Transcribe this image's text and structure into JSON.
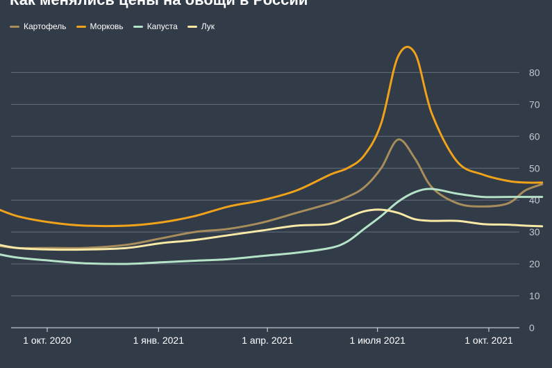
{
  "chart_data": {
    "type": "line",
    "title": "Как менялись цены на овощи в России",
    "xlabel": "",
    "ylabel": "",
    "ylim": [
      0,
      90
    ],
    "y_ticks": [
      0,
      10,
      20,
      30,
      40,
      50,
      60,
      70,
      80
    ],
    "x_tick_labels": [
      "1 окт. 2020",
      "1 янв. 2021",
      "1 апр. 2021",
      "1 июля 2021",
      "1 окт. 2021"
    ],
    "x_ticks": [
      "2020-10-01",
      "2021-01-01",
      "2021-04-01",
      "2021-07-01",
      "2021-10-01"
    ],
    "grid": true,
    "legend_position": "top-left",
    "x": [
      "2020-08-16",
      "2020-09-06",
      "2020-10-04",
      "2020-11-01",
      "2020-12-06",
      "2021-01-03",
      "2021-01-31",
      "2021-02-28",
      "2021-03-28",
      "2021-04-25",
      "2021-05-23",
      "2021-06-06",
      "2021-06-20",
      "2021-07-04",
      "2021-07-18",
      "2021-08-01",
      "2021-08-15",
      "2021-09-05",
      "2021-09-26",
      "2021-10-17",
      "2021-10-31",
      "2021-11-14"
    ],
    "series": [
      {
        "name": "Картофель",
        "color": "#a88d5c",
        "values": [
          26,
          25,
          25,
          25,
          26,
          28,
          30,
          31,
          33,
          36,
          39,
          41,
          44,
          50,
          59,
          53,
          44,
          39,
          38,
          39,
          43,
          45
        ]
      },
      {
        "name": "Морковь",
        "color": "#f0a21b",
        "values": [
          38,
          35,
          33,
          32,
          32,
          33,
          35,
          38,
          40,
          43,
          48,
          50,
          54,
          64,
          85,
          86,
          67,
          52,
          48,
          46,
          45.5,
          45.5
        ]
      },
      {
        "name": "Капуста",
        "color": "#b4e3c7",
        "values": [
          23.5,
          22,
          21,
          20.2,
          20,
          20.5,
          21,
          21.5,
          22.5,
          23.5,
          25,
          27,
          31,
          35,
          39.5,
          42.5,
          43.5,
          42,
          41,
          41,
          41,
          41
        ]
      },
      {
        "name": "Лук",
        "color": "#f8eaa6",
        "values": [
          26.5,
          25,
          24.5,
          24.5,
          25,
          26.5,
          27.5,
          29,
          30.5,
          32,
          32.5,
          34.5,
          36.5,
          37,
          36,
          34,
          33.5,
          33.5,
          32.5,
          32.3,
          32,
          31.8
        ]
      }
    ]
  }
}
